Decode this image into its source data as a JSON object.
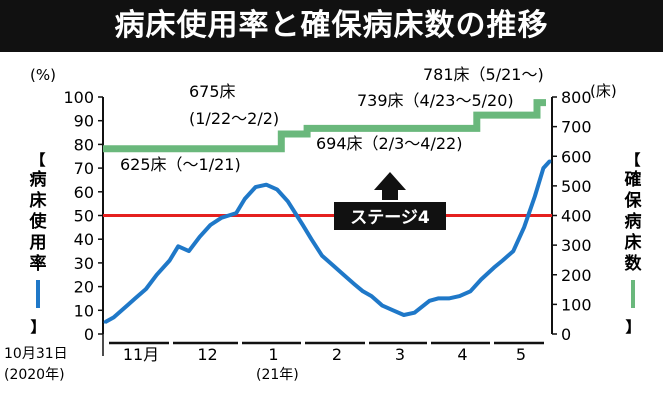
{
  "title": "病床使用率と確保病床数の推移",
  "chart_data": {
    "type": "line",
    "title": "病床使用率と確保病床数の推移",
    "x_start_label": "10月31日",
    "x_start_year": "(2020年)",
    "year_label": "(21年)",
    "months": [
      "11月",
      "12",
      "1",
      "2",
      "3",
      "4",
      "5"
    ],
    "left_axis": {
      "unit": "(%)",
      "label": "病床使用率",
      "ylim": [
        0,
        100
      ],
      "ticks": [
        0,
        10,
        20,
        30,
        40,
        50,
        60,
        70,
        80,
        90,
        100
      ]
    },
    "right_axis": {
      "unit": "(床)",
      "label": "確保病床数",
      "ylim": [
        0,
        800
      ],
      "ticks": [
        0,
        100,
        200,
        300,
        400,
        500,
        600,
        700,
        800
      ]
    },
    "threshold": {
      "value": 50,
      "label": "ステージ4",
      "color": "#e5201f"
    },
    "series": [
      {
        "key": "occupancy",
        "axis": "left",
        "color": "#1f78c8",
        "x": [
          "2020-11-01",
          "2020-11-05",
          "2020-11-10",
          "2020-11-15",
          "2020-11-20",
          "2020-11-25",
          "2020-12-01",
          "2020-12-05",
          "2020-12-10",
          "2020-12-15",
          "2020-12-20",
          "2020-12-25",
          "2021-01-01",
          "2021-01-05",
          "2021-01-10",
          "2021-01-15",
          "2021-01-20",
          "2021-01-25",
          "2021-02-01",
          "2021-02-05",
          "2021-02-10",
          "2021-02-15",
          "2021-02-20",
          "2021-02-25",
          "2021-03-01",
          "2021-03-05",
          "2021-03-10",
          "2021-03-15",
          "2021-03-20",
          "2021-03-25",
          "2021-04-01",
          "2021-04-05",
          "2021-04-10",
          "2021-04-15",
          "2021-04-20",
          "2021-04-25",
          "2021-05-01",
          "2021-05-05",
          "2021-05-10",
          "2021-05-15",
          "2021-05-20",
          "2021-05-24",
          "2021-05-27"
        ],
        "values": [
          5,
          7,
          11,
          15,
          19,
          25,
          31,
          37,
          35,
          41,
          46,
          49,
          51,
          57,
          62,
          63,
          61,
          56,
          46,
          40,
          33,
          29,
          25,
          21,
          18,
          16,
          12,
          10,
          8,
          9,
          14,
          15,
          15,
          16,
          18,
          23,
          28,
          31,
          35,
          45,
          58,
          70,
          73
        ]
      },
      {
        "key": "beds",
        "axis": "right",
        "color": "#6ab87c",
        "segments": [
          {
            "label": "625床（〜1/21)",
            "from": "2020-10-31",
            "to": "2021-01-21",
            "value": 625
          },
          {
            "label": "675床",
            "range": "(1/22〜2/2)",
            "from": "2021-01-22",
            "to": "2021-02-02",
            "value": 675
          },
          {
            "label": "694床（2/3〜4/22)",
            "from": "2021-02-03",
            "to": "2021-04-22",
            "value": 694
          },
          {
            "label": "739床（4/23〜5/20)",
            "from": "2021-04-23",
            "to": "2021-05-20",
            "value": 739
          },
          {
            "label": "781床（5/21〜)",
            "from": "2021-05-21",
            "to": "2021-05-27",
            "value": 781
          }
        ]
      }
    ]
  }
}
